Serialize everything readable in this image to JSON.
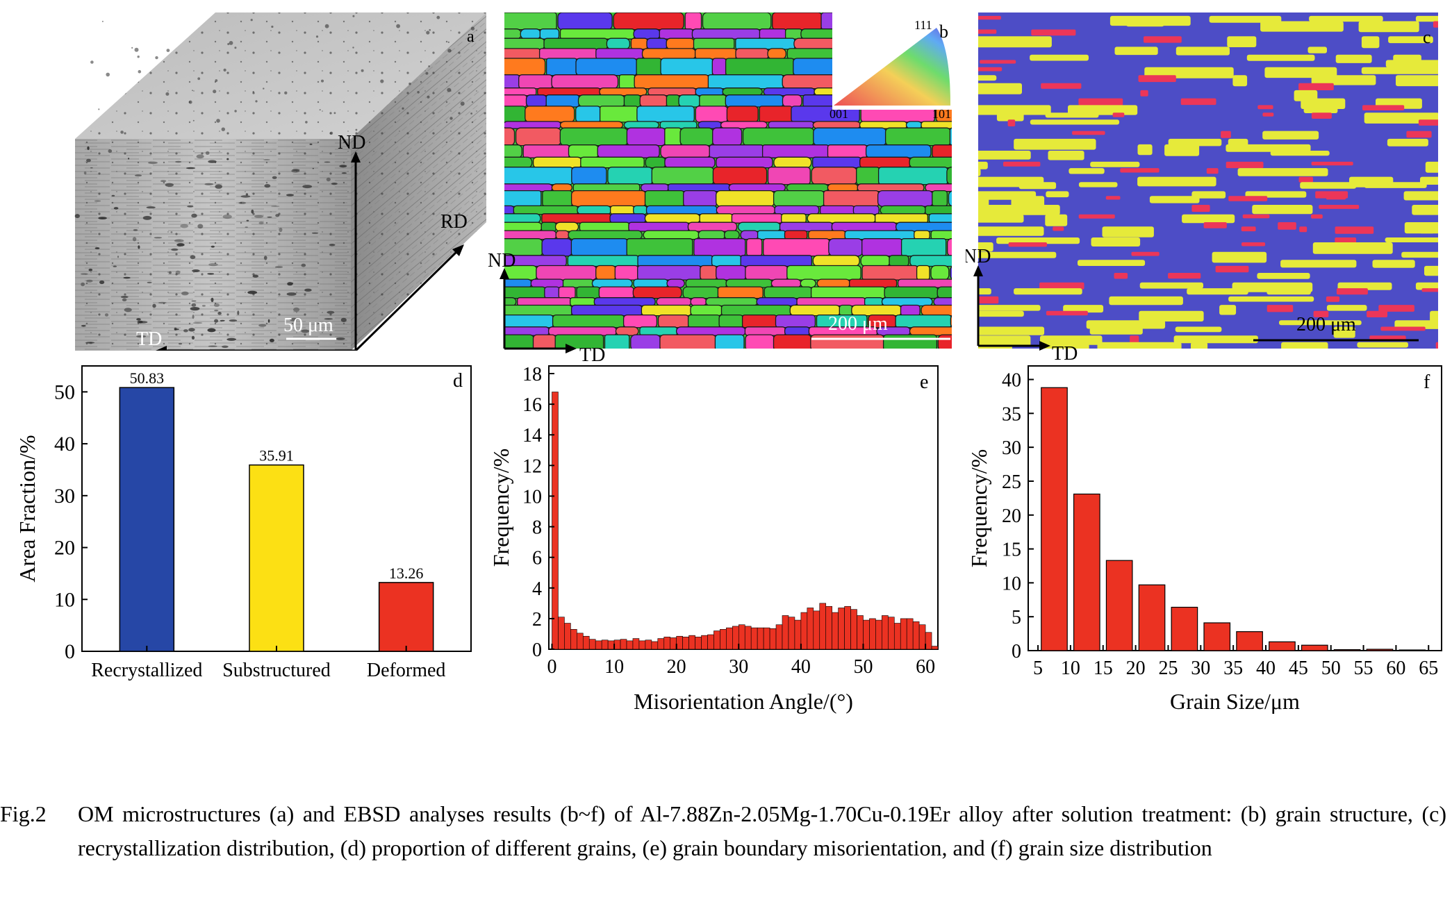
{
  "panel_a": {
    "letter": "a",
    "scale_bar": "50 μm",
    "axes": {
      "nd": "ND",
      "rd": "RD",
      "td": "TD"
    }
  },
  "panel_b": {
    "letter": "b",
    "scale_bar": "200 μm",
    "ipf_key": {
      "top": "111",
      "left": "001",
      "right": "101"
    },
    "axes": {
      "nd": "ND",
      "td": "TD"
    },
    "grain_colors": [
      "#3fc23a",
      "#32b534",
      "#52d046",
      "#e8242a",
      "#ff7a1e",
      "#f046b4",
      "#b032e0",
      "#5a38ec",
      "#28c6e8",
      "#f0e228",
      "#1e8cf0",
      "#ff4ab4",
      "#9a3ee6",
      "#25d2b2",
      "#f25a62",
      "#69e93c"
    ]
  },
  "panel_c": {
    "letter": "c",
    "scale_bar": "200 μm",
    "axes": {
      "nd": "ND",
      "td": "TD"
    },
    "colors": {
      "recrystallized": "#4d4dc6",
      "substructured": "#e6ea3a",
      "deformed": "#ec3658"
    }
  },
  "chart_data": [
    {
      "panel": "d",
      "type": "bar",
      "categories": [
        "Recrystallized",
        "Substructured",
        "Deformed"
      ],
      "values": [
        50.83,
        35.91,
        13.26
      ],
      "value_labels": [
        "50.83",
        "35.91",
        "13.26"
      ],
      "colors": [
        "#2647a6",
        "#fce014",
        "#eb3222"
      ],
      "ylabel": "Area Fraction/%",
      "ylim": [
        0,
        55
      ],
      "yticks": [
        0,
        10,
        20,
        30,
        40,
        50
      ]
    },
    {
      "panel": "e",
      "type": "bar",
      "xlabel": "Misorientation Angle/(°)",
      "ylabel": "Frequency/%",
      "xlim": [
        -0.5,
        62
      ],
      "ylim": [
        0,
        18.5
      ],
      "xticks": [
        0,
        10,
        20,
        30,
        40,
        50,
        60
      ],
      "yticks": [
        0,
        2,
        4,
        6,
        8,
        10,
        12,
        14,
        16,
        18
      ],
      "bin_width": 1,
      "bin_starts": [
        0,
        1,
        2,
        3,
        4,
        5,
        6,
        7,
        8,
        9,
        10,
        11,
        12,
        13,
        14,
        15,
        16,
        17,
        18,
        19,
        20,
        21,
        22,
        23,
        24,
        25,
        26,
        27,
        28,
        29,
        30,
        31,
        32,
        33,
        34,
        35,
        36,
        37,
        38,
        39,
        40,
        41,
        42,
        43,
        44,
        45,
        46,
        47,
        48,
        49,
        50,
        51,
        52,
        53,
        54,
        55,
        56,
        57,
        58,
        59,
        60,
        61
      ],
      "values": [
        16.8,
        2.1,
        1.7,
        1.3,
        1.05,
        0.85,
        0.65,
        0.55,
        0.6,
        0.55,
        0.6,
        0.65,
        0.55,
        0.7,
        0.55,
        0.6,
        0.5,
        0.7,
        0.8,
        0.75,
        0.85,
        0.8,
        0.9,
        0.8,
        0.9,
        0.95,
        1.2,
        1.3,
        1.4,
        1.5,
        1.6,
        1.5,
        1.4,
        1.4,
        1.4,
        1.35,
        1.6,
        2.2,
        2.1,
        1.9,
        2.4,
        2.7,
        2.5,
        3.0,
        2.8,
        2.4,
        2.7,
        2.8,
        2.6,
        2.2,
        1.9,
        2.0,
        1.9,
        2.2,
        2.1,
        1.7,
        2.0,
        2.0,
        1.8,
        1.6,
        1.1,
        0.2
      ],
      "color": "#eb3222",
      "grid": false
    },
    {
      "panel": "f",
      "type": "bar",
      "xlabel": "Grain Size/μm",
      "ylabel": "Frequency/%",
      "xlim": [
        3.5,
        67
      ],
      "ylim": [
        0,
        42
      ],
      "xticks": [
        5,
        10,
        15,
        20,
        25,
        30,
        35,
        40,
        45,
        50,
        55,
        60,
        65
      ],
      "yticks": [
        0,
        5,
        10,
        15,
        20,
        25,
        30,
        35,
        40
      ],
      "bin_centers": [
        7.5,
        12.5,
        17.5,
        22.5,
        27.5,
        32.5,
        37.5,
        42.5,
        47.5,
        52.5,
        57.5,
        62.5
      ],
      "values": [
        38.8,
        23.1,
        13.3,
        9.7,
        6.4,
        4.1,
        2.8,
        1.3,
        0.8,
        0.15,
        0.2,
        0.1
      ],
      "color": "#eb3222",
      "grid": false
    }
  ],
  "caption": {
    "label": "Fig.2",
    "text": "OM microstructures (a) and EBSD analyses results (b~f) of Al-7.88Zn-2.05Mg-1.70Cu-0.19Er alloy after solution treatment: (b) grain structure, (c) recrystallization distribution, (d) proportion of different grains, (e) grain boundary misorientation, and (f) grain size distribution"
  }
}
